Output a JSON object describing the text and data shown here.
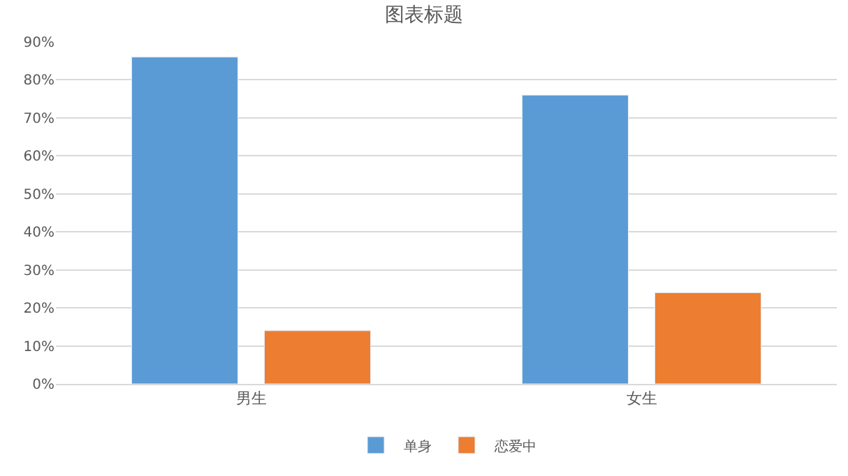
{
  "chart_data": {
    "type": "bar",
    "title": "图表标题",
    "categories": [
      "男生",
      "女生"
    ],
    "series": [
      {
        "name": "单身",
        "color": "#5b9bd5",
        "values": [
          86,
          76
        ]
      },
      {
        "name": "恋爱中",
        "color": "#ed7d31",
        "values": [
          14,
          24
        ]
      }
    ],
    "ylim": [
      0,
      90
    ],
    "yticks": [
      {
        "value": 0,
        "label": "0%"
      },
      {
        "value": 10,
        "label": "10%"
      },
      {
        "value": 20,
        "label": "20%"
      },
      {
        "value": 30,
        "label": "30%"
      },
      {
        "value": 40,
        "label": "40%"
      },
      {
        "value": 50,
        "label": "50%"
      },
      {
        "value": 60,
        "label": "60%"
      },
      {
        "value": 70,
        "label": "70%"
      },
      {
        "value": 80,
        "label": "80%"
      },
      {
        "value": 90,
        "label": "90%"
      }
    ],
    "grid": "y",
    "legend": "bottom"
  }
}
